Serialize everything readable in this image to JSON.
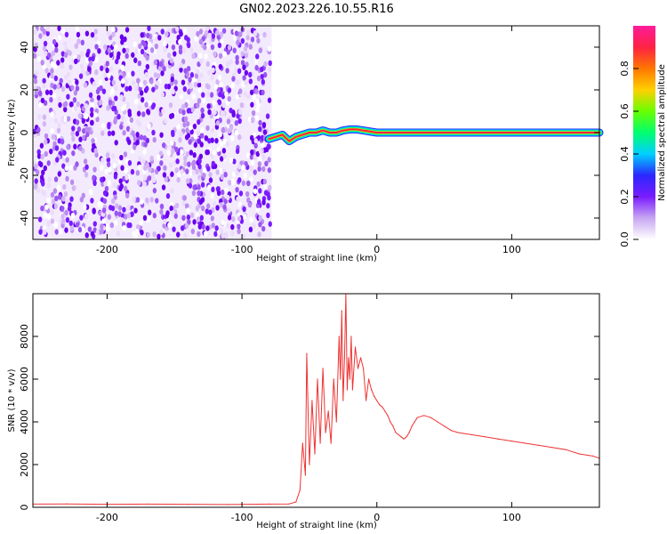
{
  "chart_data": [
    {
      "type": "heatmap",
      "title": "GN02.2023.226.10.55.R16",
      "xlabel": "Height of straight line (km)",
      "ylabel": "Frequency (Hz)",
      "xlim": [
        -255,
        165
      ],
      "ylim": [
        -50,
        50
      ],
      "x_ticks": [
        -200,
        -100,
        0,
        100
      ],
      "y_ticks": [
        -40,
        -20,
        0,
        20,
        40
      ],
      "noise_region_x": [
        -255,
        -78
      ],
      "signal_trace": {
        "x": [
          -80,
          -75,
          -70,
          -65,
          -60,
          -55,
          -50,
          -45,
          -40,
          -35,
          -30,
          -25,
          -20,
          -15,
          -10,
          -5,
          0,
          10,
          20,
          40,
          60,
          80,
          100,
          120,
          140,
          165
        ],
        "frequency": [
          -3,
          -2,
          -1,
          -4,
          -2,
          -1,
          0,
          0,
          1,
          0,
          0,
          1,
          1.5,
          1.5,
          1,
          0.5,
          0,
          0,
          0,
          0,
          0,
          0,
          0,
          0,
          0,
          0
        ]
      },
      "colorbar": {
        "label": "Normalized spectral amplitude",
        "range": [
          0,
          1
        ],
        "ticks": [
          0.0,
          0.2,
          0.4,
          0.6,
          0.8
        ],
        "colors": [
          "#ffffff",
          "#c7a6f2",
          "#7a1bff",
          "#2a28ff",
          "#00cfff",
          "#00ff6e",
          "#69ff00",
          "#ffd000",
          "#ff7700",
          "#ff2244",
          "#ff1c9a"
        ]
      },
      "grid": false
    },
    {
      "type": "line",
      "xlabel": "Height of straight line (km)",
      "ylabel": "SNR (10 * v/v)",
      "xlim": [
        -255,
        165
      ],
      "ylim": [
        0,
        10000
      ],
      "x_ticks": [
        -200,
        -100,
        0,
        100
      ],
      "y_ticks": [
        0,
        2000,
        4000,
        6000,
        8000
      ],
      "grid": false,
      "series": [
        {
          "color": "#ee3333",
          "x": [
            -255,
            -230,
            -200,
            -170,
            -140,
            -110,
            -80,
            -65,
            -60,
            -57,
            -55,
            -53,
            -52,
            -50,
            -48,
            -46,
            -44,
            -42,
            -40,
            -38,
            -36,
            -34,
            -32,
            -30,
            -28,
            -27,
            -26,
            -25,
            -24,
            -23,
            -22,
            -21,
            -20,
            -19,
            -18,
            -16,
            -14,
            -12,
            -10,
            -8,
            -6,
            -4,
            -2,
            0,
            2,
            4,
            6,
            8,
            10,
            12,
            14,
            16,
            18,
            20,
            22,
            24,
            26,
            28,
            30,
            35,
            40,
            45,
            50,
            55,
            60,
            70,
            80,
            90,
            100,
            110,
            120,
            130,
            140,
            150,
            160,
            165
          ],
          "snr": [
            150,
            160,
            140,
            150,
            140,
            130,
            150,
            160,
            250,
            800,
            3000,
            1500,
            7200,
            2000,
            5000,
            2500,
            6000,
            3000,
            6500,
            3500,
            4500,
            3000,
            6000,
            4000,
            8000,
            6000,
            9200,
            5000,
            7000,
            10000,
            5500,
            7000,
            6000,
            8000,
            5500,
            7500,
            6500,
            7000,
            6500,
            5000,
            6000,
            5500,
            5200,
            5000,
            4800,
            4700,
            4500,
            4300,
            4000,
            3800,
            3500,
            3400,
            3300,
            3200,
            3300,
            3500,
            3800,
            4000,
            4200,
            4300,
            4200,
            4000,
            3800,
            3600,
            3500,
            3400,
            3300,
            3200,
            3100,
            3000,
            2900,
            2800,
            2700,
            2500,
            2400,
            2300
          ]
        }
      ]
    }
  ]
}
